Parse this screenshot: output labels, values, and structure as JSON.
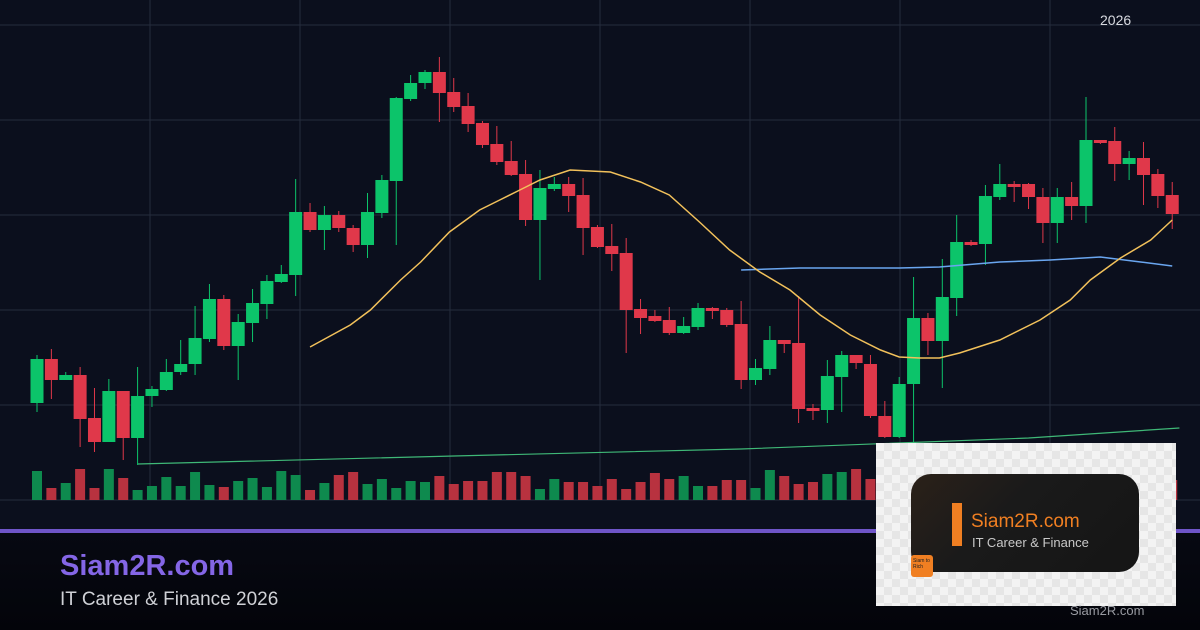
{
  "header": {
    "year": "2026"
  },
  "footer": {
    "title": "Siam2R.com",
    "subtitle": "IT Career & Finance 2026"
  },
  "logo": {
    "title": "Siam2R.com",
    "subtitle": "IT Career & Finance",
    "badge": "Siam to Rich",
    "watermark": "Siam2R.com"
  },
  "colors": {
    "up": "#0cc46a",
    "down": "#e0384a",
    "ma_short": "#f2c15b",
    "ma_long": "#6aa6f0",
    "trend": "#3fb877",
    "accent": "#6f55c8",
    "logo_orange": "#f07f22",
    "background": "#0b0f1d",
    "grid": "#262c3d"
  },
  "chart_data": {
    "type": "candlestick",
    "title": "",
    "xlabel": "",
    "ylabel": "",
    "grid": true,
    "legend": "none",
    "candles_ohlc": [
      [
        97,
        145,
        88,
        141
      ],
      [
        141,
        151,
        101,
        120
      ],
      [
        120,
        128,
        120,
        125
      ],
      [
        125,
        133,
        53,
        81
      ],
      [
        82,
        112,
        48,
        58
      ],
      [
        58,
        121,
        58,
        109
      ],
      [
        109,
        109,
        40,
        62
      ],
      [
        62,
        133,
        35,
        104
      ],
      [
        104,
        114,
        93,
        111
      ],
      [
        110,
        141,
        109,
        128
      ],
      [
        128,
        160,
        125,
        136
      ],
      [
        136,
        194,
        125,
        162
      ],
      [
        161,
        216,
        158,
        201
      ],
      [
        201,
        205,
        150,
        154
      ],
      [
        154,
        186,
        120,
        178
      ],
      [
        177,
        211,
        158,
        197
      ],
      [
        196,
        225,
        181,
        219
      ],
      [
        218,
        235,
        217,
        226
      ],
      [
        225,
        321,
        204,
        288
      ],
      [
        288,
        297,
        268,
        270
      ],
      [
        270,
        294,
        250,
        285
      ],
      [
        285,
        289,
        268,
        272
      ],
      [
        272,
        275,
        248,
        255
      ],
      [
        255,
        307,
        242,
        288
      ],
      [
        287,
        325,
        282,
        320
      ],
      [
        319,
        403,
        255,
        402
      ],
      [
        401,
        425,
        399,
        417
      ],
      [
        417,
        430,
        411,
        428
      ],
      [
        428,
        443,
        378,
        407
      ],
      [
        408,
        422,
        388,
        393
      ],
      [
        394,
        407,
        368,
        376
      ],
      [
        377,
        379,
        352,
        355
      ],
      [
        356,
        374,
        335,
        338
      ],
      [
        339,
        359,
        324,
        325
      ],
      [
        326,
        340,
        274,
        280
      ],
      [
        280,
        330,
        220,
        312
      ],
      [
        311,
        323,
        309,
        316
      ],
      [
        316,
        323,
        288,
        304
      ],
      [
        305,
        322,
        245,
        272
      ],
      [
        273,
        275,
        252,
        253
      ],
      [
        254,
        276,
        229,
        246
      ],
      [
        247,
        262,
        147,
        190
      ],
      [
        191,
        201,
        166,
        182
      ],
      [
        184,
        190,
        178,
        179
      ],
      [
        180,
        193,
        165,
        167
      ],
      [
        167,
        183,
        166,
        174
      ],
      [
        173,
        197,
        170,
        192
      ],
      [
        192,
        193,
        181,
        189
      ],
      [
        190,
        192,
        173,
        175
      ],
      [
        176,
        199,
        111,
        120
      ],
      [
        120,
        141,
        115,
        132
      ],
      [
        131,
        174,
        125,
        160
      ],
      [
        160,
        160,
        147,
        156
      ],
      [
        157,
        204,
        77,
        91
      ],
      [
        92,
        96,
        80,
        89
      ],
      [
        90,
        140,
        77,
        124
      ],
      [
        123,
        149,
        88,
        145
      ],
      [
        145,
        145,
        131,
        137
      ],
      [
        136,
        145,
        82,
        84
      ],
      [
        84,
        99,
        62,
        63
      ],
      [
        63,
        123,
        62,
        116
      ],
      [
        116,
        223,
        58,
        182
      ],
      [
        182,
        187,
        145,
        159
      ],
      [
        159,
        241,
        112,
        203
      ],
      [
        202,
        285,
        184,
        258
      ],
      [
        258,
        260,
        254,
        255
      ],
      [
        256,
        315,
        235,
        304
      ],
      [
        303,
        336,
        300,
        316
      ],
      [
        316,
        319,
        298,
        313
      ],
      [
        316,
        317,
        291,
        303
      ],
      [
        303,
        312,
        257,
        277
      ],
      [
        277,
        312,
        257,
        303
      ],
      [
        303,
        318,
        280,
        294
      ],
      [
        294,
        403,
        277,
        360
      ],
      [
        360,
        360,
        356,
        357
      ],
      [
        359,
        373,
        319,
        336
      ],
      [
        336,
        349,
        320,
        342
      ],
      [
        342,
        358,
        295,
        325
      ],
      [
        326,
        331,
        292,
        304
      ],
      [
        305,
        318,
        271,
        286
      ]
    ],
    "volume": [
      29,
      12,
      17,
      31,
      12,
      31,
      22,
      10,
      14,
      23,
      14,
      28,
      15,
      13,
      19,
      22,
      13,
      29,
      25,
      10,
      17,
      25,
      28,
      16,
      21,
      12,
      19,
      18,
      24,
      16,
      19,
      19,
      28,
      28,
      24,
      11,
      21,
      18,
      18,
      14,
      21,
      11,
      18,
      27,
      21,
      24,
      14,
      14,
      20,
      20,
      12,
      30,
      24,
      16,
      18,
      26,
      28,
      31,
      21,
      24,
      28,
      15,
      20,
      22,
      17,
      26,
      18,
      22,
      14,
      25,
      20,
      16,
      27,
      19,
      21,
      15,
      23,
      18,
      24,
      20
    ],
    "ma_short": [
      [
        20,
        153
      ],
      [
        22.8,
        175
      ],
      [
        24.2,
        190
      ],
      [
        26.3,
        220
      ],
      [
        27.7,
        238
      ],
      [
        29.7,
        268
      ],
      [
        31.8,
        290
      ],
      [
        33.2,
        300
      ],
      [
        34.6,
        310
      ],
      [
        36,
        320
      ],
      [
        38.1,
        330
      ],
      [
        40.9,
        328
      ],
      [
        43,
        318
      ],
      [
        45,
        305
      ],
      [
        47.1,
        278
      ],
      [
        49.2,
        250
      ],
      [
        51.3,
        228
      ],
      [
        53.4,
        210
      ],
      [
        55.5,
        185
      ],
      [
        57.6,
        165
      ],
      [
        59.7,
        150
      ],
      [
        61,
        143
      ],
      [
        62.4,
        142
      ],
      [
        63.8,
        142
      ],
      [
        65.2,
        147
      ],
      [
        68,
        160
      ],
      [
        70.8,
        180
      ],
      [
        72.9,
        200
      ],
      [
        74.3,
        220
      ],
      [
        76.4,
        242
      ],
      [
        78.5,
        260
      ],
      [
        80,
        280
      ]
    ],
    "ma_long": [
      [
        50,
        230
      ],
      [
        54.1,
        232
      ],
      [
        61,
        232
      ],
      [
        63.8,
        233
      ],
      [
        68,
        238
      ],
      [
        71.5,
        240
      ],
      [
        75,
        243
      ],
      [
        77.8,
        238
      ],
      [
        80,
        234
      ]
    ],
    "trend_line": [
      [
        8,
        36
      ],
      [
        30,
        44
      ],
      [
        50,
        51
      ],
      [
        70,
        62
      ],
      [
        80.5,
        72
      ]
    ]
  }
}
